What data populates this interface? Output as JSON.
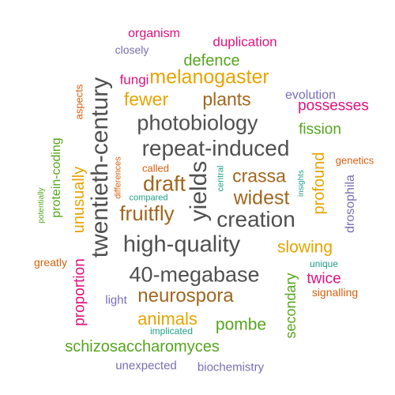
{
  "colors": {
    "gray": "#505050",
    "brown": "#A0661E",
    "gold": "#E6A400",
    "green": "#56A51E",
    "purple": "#7A6DB4",
    "magenta": "#E0117E",
    "teal": "#1D9F85",
    "orange": "#D95F0E"
  },
  "words": [
    {
      "text": "organism",
      "color": "magenta"
    },
    {
      "text": "duplication",
      "color": "magenta"
    },
    {
      "text": "closely",
      "color": "purple"
    },
    {
      "text": "defence",
      "color": "green"
    },
    {
      "text": "fungi",
      "color": "magenta"
    },
    {
      "text": "melanogaster",
      "color": "gold"
    },
    {
      "text": "evolution",
      "color": "purple"
    },
    {
      "text": "possesses",
      "color": "magenta"
    },
    {
      "text": "fewer",
      "color": "gold"
    },
    {
      "text": "plants",
      "color": "brown"
    },
    {
      "text": "aspects",
      "color": "orange"
    },
    {
      "text": "twentieth-century",
      "color": "gray"
    },
    {
      "text": "photobiology",
      "color": "gray"
    },
    {
      "text": "fission",
      "color": "green"
    },
    {
      "text": "repeat-induced",
      "color": "gray"
    },
    {
      "text": "protein-coding",
      "color": "green"
    },
    {
      "text": "differences",
      "color": "orange"
    },
    {
      "text": "called",
      "color": "orange"
    },
    {
      "text": "yields",
      "color": "gray"
    },
    {
      "text": "central",
      "color": "teal"
    },
    {
      "text": "crassa",
      "color": "brown"
    },
    {
      "text": "insights",
      "color": "teal"
    },
    {
      "text": "profound",
      "color": "gold"
    },
    {
      "text": "genetics",
      "color": "orange"
    },
    {
      "text": "draft",
      "color": "brown"
    },
    {
      "text": "widest",
      "color": "brown"
    },
    {
      "text": "compared",
      "color": "teal"
    },
    {
      "text": "drosophila",
      "color": "purple"
    },
    {
      "text": "potentially",
      "color": "green"
    },
    {
      "text": "unusually",
      "color": "gold"
    },
    {
      "text": "fruitfly",
      "color": "brown"
    },
    {
      "text": "creation",
      "color": "gray"
    },
    {
      "text": "high-quality",
      "color": "gray"
    },
    {
      "text": "slowing",
      "color": "gold"
    },
    {
      "text": "greatly",
      "color": "orange"
    },
    {
      "text": "proportion",
      "color": "magenta"
    },
    {
      "text": "unique",
      "color": "teal"
    },
    {
      "text": "40-megabase",
      "color": "gray"
    },
    {
      "text": "twice",
      "color": "magenta"
    },
    {
      "text": "secondary",
      "color": "green"
    },
    {
      "text": "neurospora",
      "color": "brown"
    },
    {
      "text": "signalling",
      "color": "orange"
    },
    {
      "text": "light",
      "color": "purple"
    },
    {
      "text": "animals",
      "color": "gold"
    },
    {
      "text": "pombe",
      "color": "green"
    },
    {
      "text": "implicated",
      "color": "teal"
    },
    {
      "text": "schizosaccharomyces",
      "color": "green"
    },
    {
      "text": "unexpected",
      "color": "purple"
    },
    {
      "text": "biochemistry",
      "color": "purple"
    }
  ]
}
